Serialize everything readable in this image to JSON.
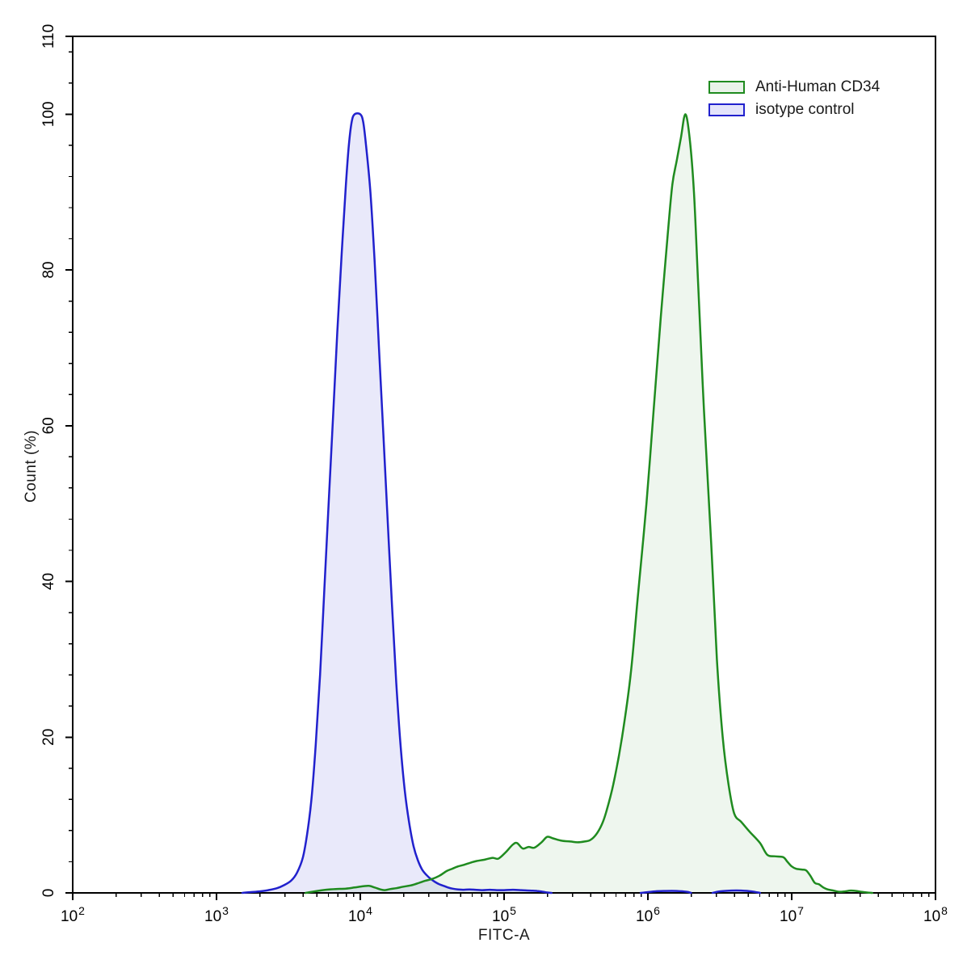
{
  "chart_data": {
    "type": "area",
    "title": "",
    "xlabel": "FITC-A",
    "ylabel": "Count (%)",
    "x_scale": "log10",
    "xlim_log10": [
      2,
      8
    ],
    "ylim": [
      0,
      110
    ],
    "x_major_tick_exponents": [
      2,
      3,
      4,
      5,
      6,
      7,
      8
    ],
    "x_minor_ticks_per_decade": [
      2,
      3,
      4,
      5,
      6,
      7,
      8,
      9
    ],
    "y_major_ticks": [
      0,
      20,
      40,
      60,
      80,
      100,
      110
    ],
    "y_minor_tick_step": 4,
    "grid": false,
    "legend_position": "top-right-inside",
    "frame": "full-box",
    "series": [
      {
        "name": "Anti-Human CD34",
        "line_color": "#1f8b1f",
        "fill_color": "rgba(34,139,34,0.08)",
        "peak_log10_x": 6.26,
        "peak_pct": 100,
        "points": [
          [
            3.62,
            0
          ],
          [
            3.7,
            0.25
          ],
          [
            3.76,
            0.4
          ],
          [
            3.83,
            0.5
          ],
          [
            3.9,
            0.55
          ],
          [
            3.96,
            0.7
          ],
          [
            4.02,
            0.85
          ],
          [
            4.06,
            0.9
          ],
          [
            4.1,
            0.7
          ],
          [
            4.14,
            0.45
          ],
          [
            4.17,
            0.35
          ],
          [
            4.21,
            0.5
          ],
          [
            4.25,
            0.6
          ],
          [
            4.3,
            0.8
          ],
          [
            4.36,
            1.0
          ],
          [
            4.41,
            1.3
          ],
          [
            4.45,
            1.55
          ],
          [
            4.5,
            1.8
          ],
          [
            4.55,
            2.2
          ],
          [
            4.6,
            2.8
          ],
          [
            4.64,
            3.1
          ],
          [
            4.68,
            3.4
          ],
          [
            4.72,
            3.6
          ],
          [
            4.77,
            3.9
          ],
          [
            4.81,
            4.1
          ],
          [
            4.87,
            4.3
          ],
          [
            4.92,
            4.5
          ],
          [
            4.96,
            4.4
          ],
          [
            5.01,
            5.2
          ],
          [
            5.06,
            6.2
          ],
          [
            5.09,
            6.4
          ],
          [
            5.13,
            5.7
          ],
          [
            5.17,
            5.9
          ],
          [
            5.21,
            5.8
          ],
          [
            5.26,
            6.5
          ],
          [
            5.3,
            7.2
          ],
          [
            5.34,
            7.0
          ],
          [
            5.4,
            6.7
          ],
          [
            5.46,
            6.6
          ],
          [
            5.51,
            6.5
          ],
          [
            5.56,
            6.6
          ],
          [
            5.6,
            6.8
          ],
          [
            5.64,
            7.5
          ],
          [
            5.68,
            8.8
          ],
          [
            5.71,
            10.4
          ],
          [
            5.76,
            14
          ],
          [
            5.82,
            20
          ],
          [
            5.88,
            28
          ],
          [
            5.93,
            38
          ],
          [
            5.99,
            50
          ],
          [
            6.04,
            62
          ],
          [
            6.09,
            74
          ],
          [
            6.14,
            85
          ],
          [
            6.17,
            91
          ],
          [
            6.2,
            94
          ],
          [
            6.23,
            97
          ],
          [
            6.26,
            100
          ],
          [
            6.29,
            97
          ],
          [
            6.32,
            90
          ],
          [
            6.35,
            78
          ],
          [
            6.39,
            62
          ],
          [
            6.44,
            45
          ],
          [
            6.48,
            30
          ],
          [
            6.52,
            20
          ],
          [
            6.56,
            14
          ],
          [
            6.6,
            10.2
          ],
          [
            6.65,
            9.1
          ],
          [
            6.71,
            7.8
          ],
          [
            6.78,
            6.4
          ],
          [
            6.83,
            4.9
          ],
          [
            6.88,
            4.7
          ],
          [
            6.94,
            4.6
          ],
          [
            6.97,
            4.0
          ],
          [
            7.0,
            3.4
          ],
          [
            7.03,
            3.1
          ],
          [
            7.07,
            3.0
          ],
          [
            7.1,
            2.9
          ],
          [
            7.13,
            2.2
          ],
          [
            7.16,
            1.3
          ],
          [
            7.19,
            1.1
          ],
          [
            7.22,
            0.7
          ],
          [
            7.25,
            0.45
          ],
          [
            7.29,
            0.3
          ],
          [
            7.33,
            0.15
          ],
          [
            7.37,
            0.2
          ],
          [
            7.41,
            0.3
          ],
          [
            7.45,
            0.25
          ],
          [
            7.49,
            0.12
          ],
          [
            7.53,
            0.04
          ],
          [
            7.56,
            0
          ]
        ]
      },
      {
        "name": "isotype control",
        "line_color": "#2121cd",
        "fill_color": "rgba(70,70,215,0.12)",
        "peak_log10_x": 3.98,
        "peak_pct": 100,
        "points": [
          [
            3.18,
            0
          ],
          [
            3.24,
            0.1
          ],
          [
            3.3,
            0.2
          ],
          [
            3.36,
            0.35
          ],
          [
            3.42,
            0.6
          ],
          [
            3.47,
            1.0
          ],
          [
            3.52,
            1.6
          ],
          [
            3.56,
            2.6
          ],
          [
            3.6,
            4.5
          ],
          [
            3.63,
            7.5
          ],
          [
            3.66,
            12
          ],
          [
            3.69,
            19
          ],
          [
            3.72,
            28
          ],
          [
            3.75,
            39
          ],
          [
            3.78,
            50
          ],
          [
            3.81,
            61
          ],
          [
            3.84,
            72
          ],
          [
            3.87,
            82
          ],
          [
            3.9,
            91
          ],
          [
            3.92,
            96
          ],
          [
            3.94,
            99
          ],
          [
            3.96,
            100
          ],
          [
            4.0,
            100
          ],
          [
            4.02,
            99
          ],
          [
            4.04,
            96
          ],
          [
            4.07,
            90
          ],
          [
            4.1,
            81
          ],
          [
            4.13,
            70
          ],
          [
            4.16,
            59
          ],
          [
            4.19,
            48
          ],
          [
            4.22,
            37
          ],
          [
            4.25,
            27
          ],
          [
            4.28,
            19
          ],
          [
            4.31,
            13
          ],
          [
            4.34,
            9
          ],
          [
            4.37,
            6
          ],
          [
            4.4,
            4.2
          ],
          [
            4.43,
            3.0
          ],
          [
            4.46,
            2.3
          ],
          [
            4.49,
            1.8
          ],
          [
            4.52,
            1.4
          ],
          [
            4.55,
            1.1
          ],
          [
            4.58,
            0.9
          ],
          [
            4.61,
            0.7
          ],
          [
            4.64,
            0.55
          ],
          [
            4.68,
            0.45
          ],
          [
            4.72,
            0.4
          ],
          [
            4.76,
            0.45
          ],
          [
            4.8,
            0.4
          ],
          [
            4.85,
            0.35
          ],
          [
            4.9,
            0.4
          ],
          [
            4.95,
            0.35
          ],
          [
            5.0,
            0.35
          ],
          [
            5.06,
            0.4
          ],
          [
            5.12,
            0.35
          ],
          [
            5.18,
            0.3
          ],
          [
            5.23,
            0.25
          ],
          [
            5.27,
            0.15
          ],
          [
            5.3,
            0.05
          ],
          [
            5.33,
            0
          ],
          [
            5.5,
            0
          ],
          [
            5.7,
            0
          ],
          [
            5.95,
            0
          ],
          [
            6.05,
            0.2
          ],
          [
            6.12,
            0.25
          ],
          [
            6.2,
            0.25
          ],
          [
            6.27,
            0.15
          ],
          [
            6.3,
            0
          ],
          [
            6.45,
            0
          ],
          [
            6.5,
            0.2
          ],
          [
            6.58,
            0.3
          ],
          [
            6.65,
            0.3
          ],
          [
            6.72,
            0.2
          ],
          [
            6.78,
            0
          ]
        ]
      }
    ]
  },
  "legend": {
    "items": [
      {
        "label": "Anti-Human CD34",
        "swatch_border": "#1f8b1f",
        "swatch_fill": "#e9f3e9"
      },
      {
        "label": "isotype control",
        "swatch_border": "#2121cd",
        "swatch_fill": "#e4e4fb"
      }
    ]
  },
  "colors": {
    "axis": "#000000",
    "text": "#1a1a1a",
    "background": "#ffffff"
  }
}
